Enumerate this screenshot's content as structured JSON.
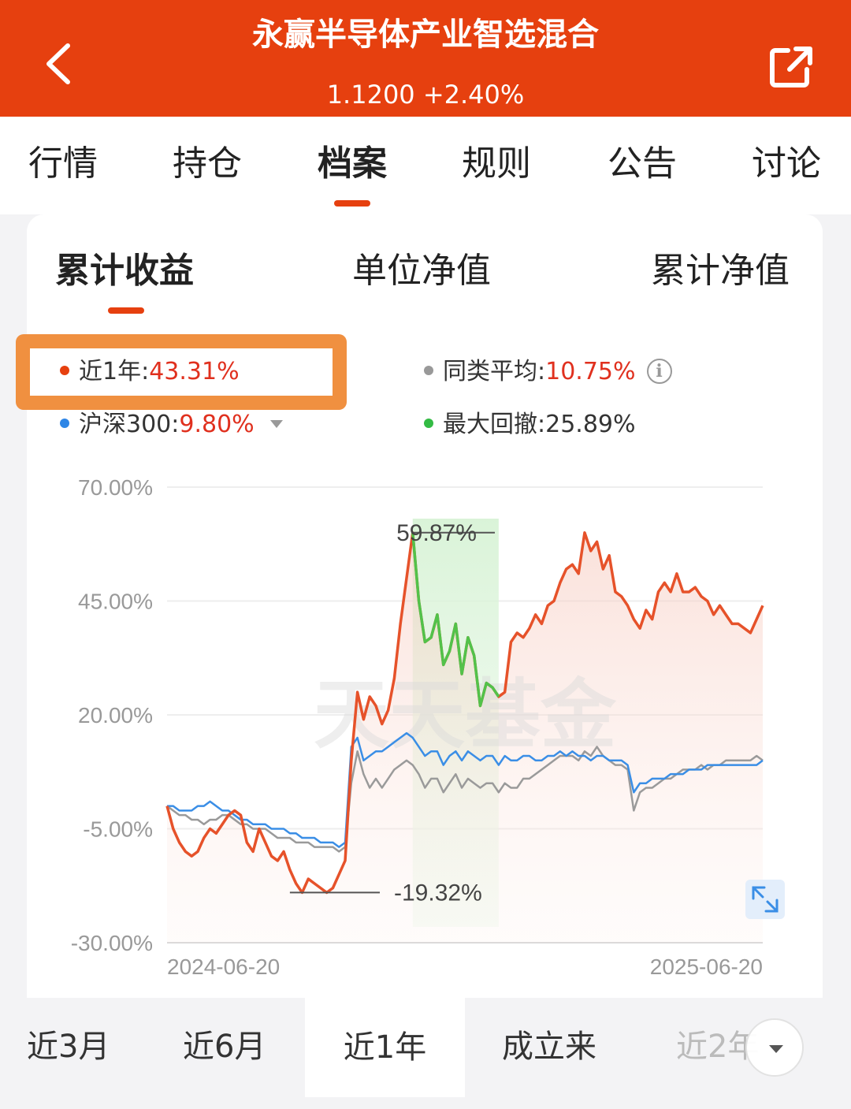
{
  "header": {
    "title": "永赢半导体产业智选混合",
    "nav_value": "1.1200",
    "change": "+2.40%",
    "back_icon": "chevron-left-icon",
    "share_icon": "share-icon"
  },
  "tabs": [
    "行情",
    "持仓",
    "档案",
    "规则",
    "公告",
    "讨论"
  ],
  "active_tab": "档案",
  "chart_tabs": [
    "累计收益",
    "单位净值",
    "累计净值"
  ],
  "active_chart_tab": "累计收益",
  "stats": {
    "fund": {
      "label": "近1年:",
      "value": "43.31%",
      "color": "#e6400f"
    },
    "peer": {
      "label": "同类平均:",
      "value": "10.75%",
      "color": "#999999"
    },
    "index": {
      "label": "沪深300:",
      "value": "9.80%",
      "color": "#2e86e6"
    },
    "drawdown": {
      "label": "最大回撤:",
      "value": "25.89%",
      "color": "#33bb44"
    }
  },
  "watermark": "天天基金",
  "chart_data": {
    "type": "line",
    "y_ticks": [
      "70.00%",
      "45.00%",
      "20.00%",
      "-5.00%",
      "-30.00%"
    ],
    "ylim": [
      -30,
      70
    ],
    "x_start": "2024-06-20",
    "x_end": "2025-06-20",
    "annotations": {
      "max": "59.87%",
      "min": "-19.32%"
    },
    "series": [
      {
        "name": "近1年",
        "color": "#e6522a",
        "values": [
          0,
          -5,
          -8,
          -10,
          -11,
          -10,
          -7,
          -5,
          -6,
          -4,
          -2,
          -1,
          -2,
          -8,
          -10,
          -5,
          -8,
          -11,
          -12,
          -10,
          -14,
          -17,
          -19,
          -16,
          -17,
          -18,
          -19,
          -18,
          -15,
          -12,
          10,
          25,
          19,
          24,
          22,
          18,
          21,
          28,
          40,
          50,
          60,
          45,
          36,
          37,
          42,
          31,
          34,
          40,
          29,
          37,
          33,
          22,
          27,
          26,
          24,
          25,
          36,
          38,
          37,
          39,
          42,
          40,
          44,
          45,
          49,
          52,
          53,
          51,
          60,
          56,
          58,
          52,
          55,
          47,
          46,
          44,
          41,
          39,
          43,
          41,
          47,
          49,
          47,
          51,
          47,
          47,
          48,
          46,
          45,
          42,
          44,
          42,
          40,
          40,
          39,
          38,
          41,
          44
        ]
      },
      {
        "name": "同类平均",
        "color": "#9a9a9a",
        "values": [
          0,
          -1,
          -2,
          -2,
          -3,
          -3,
          -4,
          -3,
          -3,
          -2,
          -2,
          -3,
          -4,
          -4,
          -5,
          -5,
          -5,
          -6,
          -7,
          -7,
          -7,
          -8,
          -8,
          -8,
          -9,
          -9,
          -9,
          -9,
          -10,
          -9,
          5,
          12,
          7,
          4,
          6,
          4,
          6,
          8,
          9,
          10,
          9,
          7,
          4,
          6,
          6,
          3,
          5,
          7,
          4,
          6,
          5,
          4,
          5,
          5,
          3,
          5,
          4,
          4,
          6,
          6,
          7,
          8,
          9,
          10,
          11,
          11,
          11,
          10,
          12,
          11,
          13,
          11,
          10,
          9,
          9,
          8,
          -1,
          3,
          4,
          4,
          5,
          6,
          6,
          7,
          8,
          8,
          8,
          9,
          8,
          9,
          9,
          10,
          10,
          10,
          10,
          10,
          11,
          10
        ]
      },
      {
        "name": "沪深300",
        "color": "#3a8ee6",
        "values": [
          0,
          0,
          -1,
          -1,
          -1,
          0,
          0,
          1,
          0,
          -1,
          -1,
          -2,
          -3,
          -3,
          -4,
          -4,
          -4,
          -5,
          -5,
          -5,
          -6,
          -6,
          -7,
          -7,
          -7,
          -8,
          -8,
          -8,
          -9,
          -8,
          13,
          15,
          10,
          11,
          12,
          12,
          13,
          14,
          15,
          16,
          15,
          13,
          11,
          12,
          12,
          9,
          11,
          12,
          10,
          12,
          11,
          10,
          11,
          11,
          9,
          11,
          10,
          10,
          11,
          11,
          10,
          10,
          11,
          11,
          12,
          11,
          12,
          11,
          11,
          10,
          11,
          11,
          10,
          10,
          10,
          9,
          3,
          5,
          5,
          6,
          6,
          6,
          7,
          7,
          7,
          8,
          8,
          8,
          9,
          9,
          9,
          9,
          9,
          9,
          9,
          9,
          9,
          10
        ]
      },
      {
        "name": "最大回撤",
        "color": "#52c24a",
        "values": [
          60,
          45,
          36,
          37,
          42,
          31,
          34,
          40,
          29,
          37,
          33,
          22,
          27,
          26,
          24
        ]
      }
    ]
  },
  "expand_icon": "expand-icon",
  "ranges": [
    "近3月",
    "近6月",
    "近1年",
    "成立来",
    "近2年"
  ],
  "active_range": "近1年",
  "more_icon": "chevron-down-icon"
}
